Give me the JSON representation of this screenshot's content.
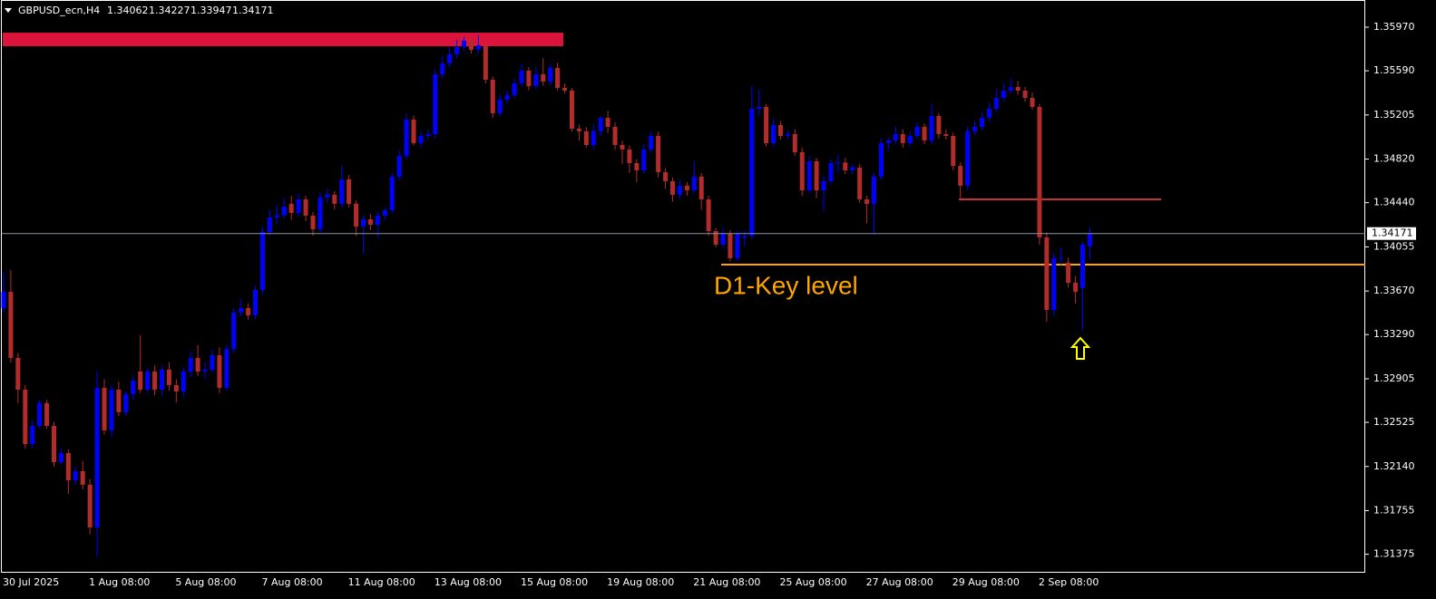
{
  "chart_data": {
    "type": "candlestick",
    "symbol": "GBPUSD_ecn,H4",
    "up_color": "#0000ff",
    "down_color": "#b22c2c",
    "ylim": [
      1.31214,
      1.36207
    ],
    "yticks": [
      {
        "value": 1.3597,
        "label": "1.35970"
      },
      {
        "value": 1.3559,
        "label": "1.35590"
      },
      1.35205,
      {
        "value": 1.3482,
        "label": "1.34820"
      },
      {
        "value": 1.3444,
        "label": "1.34440"
      },
      1.34055,
      {
        "value": 1.3367,
        "label": "1.33670"
      },
      {
        "value": 1.3329,
        "label": "1.33290"
      },
      1.32905,
      1.32525,
      {
        "value": 1.3214,
        "label": "1.32140"
      },
      1.31755,
      1.31375
    ],
    "categories": [
      "30 Jul 2025",
      null,
      null,
      null,
      null,
      null,
      null,
      null,
      null,
      null,
      null,
      null,
      "1 Aug 08:00",
      null,
      null,
      null,
      null,
      null,
      null,
      null,
      null,
      null,
      null,
      null,
      "5 Aug 08:00",
      null,
      null,
      null,
      null,
      null,
      null,
      null,
      null,
      null,
      null,
      null,
      "7 Aug 08:00",
      null,
      null,
      null,
      null,
      null,
      null,
      null,
      null,
      null,
      null,
      null,
      "11 Aug 08:00",
      null,
      null,
      null,
      null,
      null,
      null,
      null,
      null,
      null,
      null,
      null,
      "13 Aug 08:00",
      null,
      null,
      null,
      null,
      null,
      null,
      null,
      null,
      null,
      null,
      null,
      "15 Aug 08:00",
      null,
      null,
      null,
      null,
      null,
      null,
      null,
      null,
      null,
      null,
      null,
      "19 Aug 08:00",
      null,
      null,
      null,
      null,
      null,
      null,
      null,
      null,
      null,
      null,
      null,
      "21 Aug 08:00",
      null,
      null,
      null,
      null,
      null,
      null,
      null,
      null,
      null,
      null,
      null,
      "25 Aug 08:00",
      null,
      null,
      null,
      null,
      null,
      null,
      null,
      null,
      null,
      null,
      null,
      "27 Aug 08:00",
      null,
      null,
      null,
      null,
      null,
      null,
      null,
      null,
      null,
      null,
      null,
      "29 Aug 08:00",
      null,
      null,
      null,
      null,
      null,
      null,
      null,
      null,
      null,
      null,
      null,
      "2 Sep 08:00",
      null,
      null,
      null,
      null,
      null,
      null,
      null
    ],
    "ohlc": [
      [
        1.33521,
        1.33837,
        1.33482,
        1.33663
      ],
      [
        1.33663,
        1.33853,
        1.33047,
        1.33087
      ],
      [
        1.33087,
        1.3313,
        1.32692,
        1.3281
      ],
      [
        1.3281,
        1.3285,
        1.32297,
        1.32336
      ],
      [
        1.32336,
        1.3254,
        1.323,
        1.32494
      ],
      [
        1.32494,
        1.3272,
        1.3247,
        1.32692
      ],
      [
        1.32692,
        1.3272,
        1.3247,
        1.32494
      ],
      [
        1.32494,
        1.3253,
        1.32138,
        1.32178
      ],
      [
        1.32178,
        1.323,
        1.3215,
        1.32257
      ],
      [
        1.32257,
        1.3229,
        1.31902,
        1.3202
      ],
      [
        1.3202,
        1.3214,
        1.3198,
        1.32099
      ],
      [
        1.32099,
        1.3219,
        1.3194,
        1.31981
      ],
      [
        1.31981,
        1.3203,
        1.31549,
        1.31609
      ],
      [
        1.31609,
        1.32976,
        1.31349,
        1.32826
      ],
      [
        1.32826,
        1.329,
        1.3242,
        1.32455
      ],
      [
        1.32455,
        1.3285,
        1.324,
        1.3281
      ],
      [
        1.3281,
        1.3288,
        1.3258,
        1.32613
      ],
      [
        1.32613,
        1.328,
        1.3258,
        1.32771
      ],
      [
        1.32771,
        1.3293,
        1.3272,
        1.32889
      ],
      [
        1.32968,
        1.33284,
        1.3278,
        1.3281
      ],
      [
        1.3281,
        1.33,
        1.3278,
        1.32968
      ],
      [
        1.32968,
        1.3302,
        1.3276,
        1.3281
      ],
      [
        1.3281,
        1.3302,
        1.3276,
        1.32984
      ],
      [
        1.32984,
        1.3305,
        1.328,
        1.3285
      ],
      [
        1.3285,
        1.329,
        1.327,
        1.32794
      ],
      [
        1.32794,
        1.33,
        1.3275,
        1.32968
      ],
      [
        1.32968,
        1.3314,
        1.3292,
        1.33087
      ],
      [
        1.33087,
        1.332,
        1.3293,
        1.32968
      ],
      [
        1.32968,
        1.3305,
        1.329,
        1.32984
      ],
      [
        1.32984,
        1.3316,
        1.3295,
        1.3311
      ],
      [
        1.3311,
        1.3318,
        1.3278,
        1.32826
      ],
      [
        1.32826,
        1.332,
        1.328,
        1.33165
      ],
      [
        1.33165,
        1.3352,
        1.3313,
        1.33482
      ],
      [
        1.33482,
        1.336,
        1.3345,
        1.33521
      ],
      [
        1.33521,
        1.3356,
        1.3342,
        1.33458
      ],
      [
        1.33458,
        1.3372,
        1.3342,
        1.33679
      ],
      [
        1.33679,
        1.3423,
        1.3364,
        1.34185
      ],
      [
        1.34185,
        1.3438,
        1.3415,
        1.34311
      ],
      [
        1.34311,
        1.3442,
        1.3425,
        1.3433
      ],
      [
        1.3433,
        1.3448,
        1.343,
        1.34406
      ],
      [
        1.3443,
        1.345,
        1.3429,
        1.34351
      ],
      [
        1.34351,
        1.3452,
        1.3432,
        1.34469
      ],
      [
        1.34469,
        1.345,
        1.3428,
        1.34327
      ],
      [
        1.34327,
        1.3436,
        1.3415,
        1.34208
      ],
      [
        1.34208,
        1.3453,
        1.3418,
        1.34485
      ],
      [
        1.34485,
        1.3456,
        1.3444,
        1.34509
      ],
      [
        1.34509,
        1.3454,
        1.3438,
        1.3443
      ],
      [
        1.3443,
        1.3476,
        1.344,
        1.34643
      ],
      [
        1.34643,
        1.3468,
        1.344,
        1.3443
      ],
      [
        1.3443,
        1.3446,
        1.3415,
        1.34232
      ],
      [
        1.34232,
        1.3433,
        1.34,
        1.34295
      ],
      [
        1.34295,
        1.3434,
        1.342,
        1.34248
      ],
      [
        1.34248,
        1.3436,
        1.3413,
        1.34327
      ],
      [
        1.34327,
        1.344,
        1.3429,
        1.34374
      ],
      [
        1.34374,
        1.347,
        1.3434,
        1.34667
      ],
      [
        1.34667,
        1.349,
        1.3463,
        1.34848
      ],
      [
        1.34848,
        1.3522,
        1.3482,
        1.35164
      ],
      [
        1.35164,
        1.352,
        1.3494,
        1.34959
      ],
      [
        1.34959,
        1.3506,
        1.3492,
        1.35022
      ],
      [
        1.35022,
        1.3508,
        1.3499,
        1.35038
      ],
      [
        1.35038,
        1.356,
        1.35,
        1.35559
      ],
      [
        1.35559,
        1.3572,
        1.3552,
        1.35654
      ],
      [
        1.35654,
        1.358,
        1.3562,
        1.35733
      ],
      [
        1.35733,
        1.3586,
        1.357,
        1.35797
      ],
      [
        1.35797,
        1.35891,
        1.3576,
        1.35852
      ],
      [
        1.35852,
        1.3588,
        1.3574,
        1.35773
      ],
      [
        1.35773,
        1.359,
        1.3574,
        1.35812
      ],
      [
        1.35812,
        1.3584,
        1.3548,
        1.35512
      ],
      [
        1.35512,
        1.3554,
        1.3518,
        1.3522
      ],
      [
        1.3522,
        1.3538,
        1.3519,
        1.35338
      ],
      [
        1.35338,
        1.3542,
        1.353,
        1.35378
      ],
      [
        1.35378,
        1.3552,
        1.3535,
        1.3548
      ],
      [
        1.3548,
        1.3565,
        1.3545,
        1.35591
      ],
      [
        1.35591,
        1.3562,
        1.3542,
        1.35457
      ],
      [
        1.35457,
        1.3562,
        1.3543,
        1.35559
      ],
      [
        1.35559,
        1.357,
        1.3546,
        1.35496
      ],
      [
        1.35496,
        1.3565,
        1.3546,
        1.35615
      ],
      [
        1.35615,
        1.3566,
        1.3542,
        1.35441
      ],
      [
        1.35441,
        1.3548,
        1.3539,
        1.35417
      ],
      [
        1.35417,
        1.3544,
        1.3506,
        1.35085
      ],
      [
        1.35085,
        1.3512,
        1.3498,
        1.35062
      ],
      [
        1.35062,
        1.351,
        1.3492,
        1.34943
      ],
      [
        1.34943,
        1.3512,
        1.349,
        1.35062
      ],
      [
        1.35062,
        1.352,
        1.3502,
        1.3518
      ],
      [
        1.3518,
        1.3524,
        1.3505,
        1.35101
      ],
      [
        1.35101,
        1.3514,
        1.349,
        1.34943
      ],
      [
        1.34943,
        1.3498,
        1.3478,
        1.34904
      ],
      [
        1.34904,
        1.3494,
        1.347,
        1.34785
      ],
      [
        1.34785,
        1.3482,
        1.3462,
        1.34722
      ],
      [
        1.34722,
        1.3495,
        1.3469,
        1.34904
      ],
      [
        1.34904,
        1.3506,
        1.3487,
        1.35022
      ],
      [
        1.35022,
        1.3506,
        1.3466,
        1.34706
      ],
      [
        1.34706,
        1.3474,
        1.3456,
        1.34627
      ],
      [
        1.34627,
        1.3466,
        1.3445,
        1.34509
      ],
      [
        1.34509,
        1.3464,
        1.3447,
        1.34588
      ],
      [
        1.34588,
        1.3462,
        1.345,
        1.34548
      ],
      [
        1.34548,
        1.348,
        1.3452,
        1.34667
      ],
      [
        1.34667,
        1.347,
        1.3438,
        1.34469
      ],
      [
        1.34469,
        1.345,
        1.3415,
        1.34192
      ],
      [
        1.34192,
        1.3422,
        1.3405,
        1.34074
      ],
      [
        1.34074,
        1.3422,
        1.3404,
        1.34169
      ],
      [
        1.34169,
        1.342,
        1.3393,
        1.33956
      ],
      [
        1.33956,
        1.342,
        1.3393,
        1.34169
      ],
      [
        1.34137,
        1.342,
        1.3406,
        1.3415
      ],
      [
        1.3415,
        1.35457,
        1.3412,
        1.35259
      ],
      [
        1.35259,
        1.3543,
        1.352,
        1.35275
      ],
      [
        1.35275,
        1.353,
        1.3493,
        1.34959
      ],
      [
        1.34959,
        1.3517,
        1.3493,
        1.35117
      ],
      [
        1.35117,
        1.3515,
        1.3499,
        1.35022
      ],
      [
        1.35022,
        1.3508,
        1.3499,
        1.35038
      ],
      [
        1.35038,
        1.3508,
        1.3485,
        1.3488
      ],
      [
        1.3488,
        1.3492,
        1.345,
        1.34548
      ],
      [
        1.34548,
        1.3485,
        1.3452,
        1.34801
      ],
      [
        1.34801,
        1.3483,
        1.3448,
        1.34548
      ],
      [
        1.34548,
        1.3468,
        1.3437,
        1.34627
      ],
      [
        1.34627,
        1.3482,
        1.346,
        1.34785
      ],
      [
        1.34785,
        1.3486,
        1.347,
        1.3479
      ],
      [
        1.3479,
        1.3483,
        1.3469,
        1.34722
      ],
      [
        1.34722,
        1.3478,
        1.3469,
        1.34746
      ],
      [
        1.34746,
        1.3478,
        1.3444,
        1.34469
      ],
      [
        1.34469,
        1.345,
        1.3426,
        1.3443
      ],
      [
        1.3443,
        1.347,
        1.3416,
        1.34667
      ],
      [
        1.34667,
        1.35,
        1.3464,
        1.34959
      ],
      [
        1.34959,
        1.3501,
        1.349,
        1.34983
      ],
      [
        1.34983,
        1.351,
        1.3495,
        1.35038
      ],
      [
        1.35038,
        1.3508,
        1.3492,
        1.34959
      ],
      [
        1.34959,
        1.3506,
        1.3493,
        1.35022
      ],
      [
        1.35022,
        1.3514,
        1.3499,
        1.35101
      ],
      [
        1.35101,
        1.3513,
        1.3495,
        1.34983
      ],
      [
        1.34983,
        1.353,
        1.3495,
        1.35196
      ],
      [
        1.35196,
        1.3522,
        1.35,
        1.35038
      ],
      [
        1.35038,
        1.3508,
        1.3499,
        1.35022
      ],
      [
        1.35022,
        1.3505,
        1.3472,
        1.34761
      ],
      [
        1.34761,
        1.3479,
        1.3448,
        1.34588
      ],
      [
        1.34588,
        1.351,
        1.3455,
        1.35062
      ],
      [
        1.35062,
        1.3515,
        1.3503,
        1.35101
      ],
      [
        1.35101,
        1.3523,
        1.3507,
        1.3518
      ],
      [
        1.3518,
        1.3531,
        1.3515,
        1.35259
      ],
      [
        1.35259,
        1.3543,
        1.3523,
        1.35354
      ],
      [
        1.35354,
        1.3548,
        1.3532,
        1.35417
      ],
      [
        1.35417,
        1.3552,
        1.3539,
        1.35449
      ],
      [
        1.35449,
        1.355,
        1.3538,
        1.35417
      ],
      [
        1.35417,
        1.3545,
        1.3532,
        1.35354
      ],
      [
        1.35354,
        1.354,
        1.3525,
        1.35275
      ],
      [
        1.35275,
        1.353,
        1.34074,
        1.34137
      ],
      [
        1.34137,
        1.3418,
        1.33402,
        1.33505
      ],
      [
        1.33505,
        1.34,
        1.3346,
        1.33956
      ],
      [
        1.33956,
        1.3405,
        1.339,
        1.3396
      ],
      [
        1.33917,
        1.3396,
        1.337,
        1.33742
      ],
      [
        1.33742,
        1.338,
        1.3356,
        1.33663
      ],
      [
        1.33695,
        1.341,
        1.33323,
        1.34074
      ],
      [
        1.34062,
        1.34227,
        1.33947,
        1.34171
      ]
    ],
    "zone": {
      "top": 1.35922,
      "bottom": 1.35804,
      "color": "#dc143c"
    },
    "lines": [
      {
        "price": 1.34469,
        "color": "#c8323c"
      },
      {
        "price": 1.339,
        "color": "#ffa500",
        "label": "D1-Key level"
      }
    ]
  }
}
